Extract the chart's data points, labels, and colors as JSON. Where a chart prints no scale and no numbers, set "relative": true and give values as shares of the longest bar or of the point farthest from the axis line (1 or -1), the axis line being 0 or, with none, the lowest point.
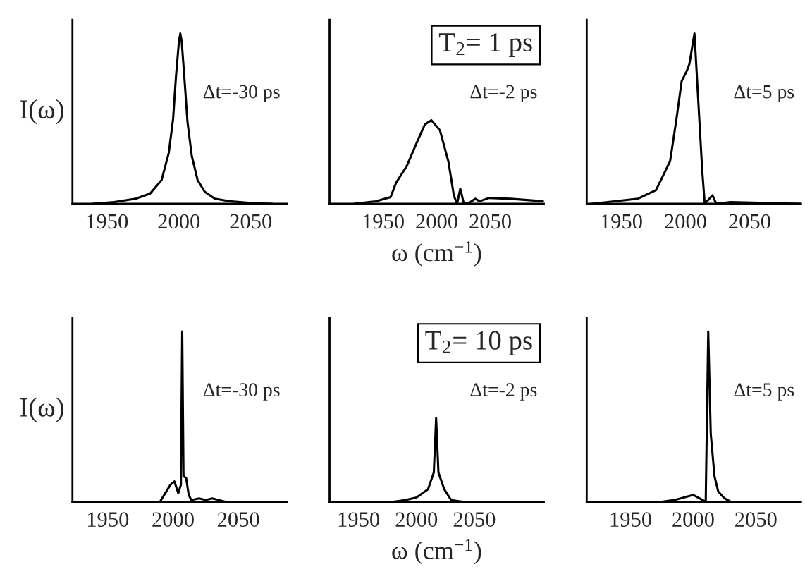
{
  "chart_data": [
    {
      "type": "line",
      "relative": true,
      "ylabel": "I(ω)",
      "xlim": [
        1926,
        2075
      ],
      "xticks": [
        1950,
        2000,
        2050
      ],
      "tick_labels": "x",
      "annotations": [
        "Δt=-30 ps"
      ],
      "series": [
        {
          "color": "#000000",
          "x": [
            1940,
            1955,
            1970,
            1980,
            1988,
            1993,
            1996,
            1998,
            2000,
            2001,
            2002,
            2004,
            2006,
            2009,
            2013,
            2018,
            2025,
            2035,
            2050,
            2065
          ],
          "values": [
            0.0,
            0.01,
            0.03,
            0.06,
            0.14,
            0.3,
            0.5,
            0.75,
            0.95,
            1.0,
            0.95,
            0.72,
            0.48,
            0.28,
            0.14,
            0.07,
            0.03,
            0.015,
            0.005,
            0.0
          ]
        }
      ]
    },
    {
      "type": "line",
      "relative": true,
      "title": "T$_{2}$= 1 ps",
      "xlabel": "ω (cm$^{−1}$)",
      "xlim": [
        1900,
        2100
      ],
      "xticks": [
        1950,
        2000,
        2050
      ],
      "tick_labels": "x",
      "annotations": [
        "Δt=-2 ps"
      ],
      "series": [
        {
          "color": "#000000",
          "x": [
            1923,
            1943,
            1957,
            1962,
            1972,
            1982,
            1989,
            1995,
            2003,
            2011,
            2016,
            2019,
            2022,
            2025,
            2029,
            2036,
            2040,
            2049,
            2069,
            2100
          ],
          "values": [
            0.0,
            0.03,
            0.08,
            0.25,
            0.45,
            0.75,
            0.95,
            1.0,
            0.88,
            0.5,
            0.1,
            0.0,
            0.18,
            0.02,
            0.0,
            0.06,
            0.03,
            0.07,
            0.06,
            0.03
          ]
        }
      ]
    },
    {
      "type": "line",
      "relative": true,
      "xlim": [
        1923,
        2090
      ],
      "xticks": [
        1950,
        2000,
        2050
      ],
      "tick_labels": "x",
      "annotations": [
        "Δt=5 ps"
      ],
      "series": [
        {
          "color": "#000000",
          "x": [
            1927,
            1963,
            1977,
            1988,
            1993,
            1997,
            2001,
            2003,
            2007,
            2010,
            2013,
            2015,
            2021,
            2024,
            2035,
            2090
          ],
          "values": [
            0.0,
            0.03,
            0.08,
            0.25,
            0.5,
            0.72,
            0.78,
            0.82,
            1.0,
            0.6,
            0.2,
            0.0,
            0.05,
            0.0,
            0.01,
            0.0
          ]
        }
      ]
    },
    {
      "type": "line",
      "relative": true,
      "ylabel": "I(ω)",
      "xlim": [
        1923,
        2087
      ],
      "xticks": [
        1950,
        2000,
        2050
      ],
      "tick_labels": "x",
      "annotations": [
        "Δt=-30 ps"
      ],
      "series": [
        {
          "color": "#000000",
          "x": [
            1923,
            1990,
            1998,
            2001,
            2004,
            2006,
            2007,
            2008,
            2010,
            2012,
            2014,
            2020,
            2025,
            2030,
            2035,
            2040,
            2087
          ],
          "values": [
            0.0,
            0.0,
            0.1,
            0.12,
            0.05,
            0.1,
            1.0,
            0.15,
            0.14,
            0.04,
            0.01,
            0.02,
            0.01,
            0.02,
            0.01,
            0.0,
            0.0
          ]
        }
      ]
    },
    {
      "type": "line",
      "relative": true,
      "title": "T$_{2}$= 10 ps",
      "xlabel": "ω (cm$^{−1}$)",
      "xlim": [
        1925,
        2110
      ],
      "xticks": [
        1950,
        2000,
        2050
      ],
      "tick_labels": "x",
      "annotations": [
        "Δt=-2 ps"
      ],
      "series": [
        {
          "color": "#000000",
          "x": [
            1925,
            1980,
            1990,
            2000,
            2010,
            2015,
            2017,
            2019,
            2024,
            2030,
            2040,
            2110
          ],
          "values": [
            0.0,
            0.0,
            0.02,
            0.05,
            0.15,
            0.35,
            1.0,
            0.35,
            0.15,
            0.02,
            0.0,
            0.0
          ]
        }
      ]
    },
    {
      "type": "line",
      "relative": true,
      "xlim": [
        1915,
        2086
      ],
      "xticks": [
        1950,
        2000,
        2050
      ],
      "tick_labels": "x",
      "annotations": [
        "Δt=5 ps"
      ],
      "series": [
        {
          "color": "#000000",
          "x": [
            1915,
            1975,
            1985,
            1995,
            2000,
            2005,
            2010,
            2011,
            2012,
            2014,
            2017,
            2020,
            2025,
            2030,
            2086
          ],
          "values": [
            0.0,
            0.0,
            0.01,
            0.03,
            0.04,
            0.02,
            0.0,
            0.5,
            1.0,
            0.4,
            0.15,
            0.06,
            0.02,
            0.0,
            0.0
          ]
        }
      ]
    }
  ]
}
